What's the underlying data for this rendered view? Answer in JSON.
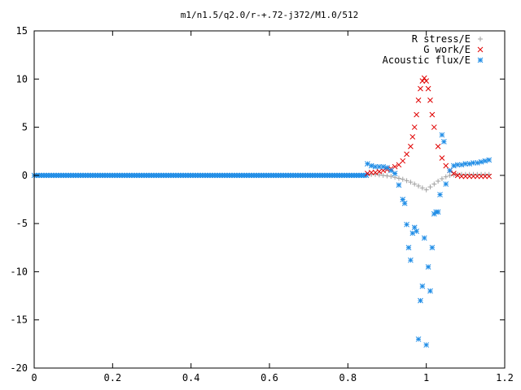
{
  "chart_data": {
    "type": "scatter",
    "title": "m1/n1.5/q2.0/r-+.72-j372/M1.0/512",
    "xlabel": "",
    "ylabel": "",
    "xlim": [
      0,
      1.2
    ],
    "ylim": [
      -20,
      15
    ],
    "x_ticks": [
      0,
      0.2,
      0.4,
      0.6,
      0.8,
      1,
      1.2
    ],
    "x_tick_labels": [
      "0",
      "0.2",
      "0.4",
      "0.6",
      "0.8",
      "1",
      "1.2"
    ],
    "y_ticks": [
      -20,
      -15,
      -10,
      -5,
      0,
      5,
      10,
      15
    ],
    "y_tick_labels": [
      "-20",
      "-15",
      "-10",
      "-5",
      "0",
      "5",
      "10",
      "15"
    ],
    "grid": false,
    "legend_position": "top-right",
    "series": [
      {
        "name": "R stress/E",
        "marker": "plus",
        "color": "#a0a0a0",
        "x": [
          0.86,
          0.87,
          0.88,
          0.89,
          0.9,
          0.91,
          0.92,
          0.93,
          0.94,
          0.95,
          0.96,
          0.97,
          0.98,
          0.99,
          1.0,
          1.01,
          1.02,
          1.03,
          1.04,
          1.05,
          1.06,
          1.07,
          1.08,
          1.09,
          1.1,
          1.11,
          1.12,
          1.13,
          1.14,
          1.15,
          1.16
        ],
        "y": [
          0.1,
          0.1,
          0.05,
          0,
          -0.05,
          -0.1,
          -0.2,
          -0.3,
          -0.4,
          -0.55,
          -0.7,
          -0.9,
          -1.1,
          -1.3,
          -1.5,
          -1.2,
          -0.9,
          -0.6,
          -0.35,
          -0.15,
          0,
          0.05,
          0.1,
          0.1,
          0.1,
          0.1,
          0.1,
          0.1,
          0.1,
          0.1,
          0.1
        ]
      },
      {
        "name": "G work/E",
        "marker": "cross",
        "color": "#e00000",
        "x": [
          0.85,
          0.86,
          0.87,
          0.88,
          0.89,
          0.9,
          0.91,
          0.92,
          0.93,
          0.94,
          0.95,
          0.96,
          0.965,
          0.97,
          0.975,
          0.98,
          0.985,
          0.99,
          0.995,
          1.0,
          1.005,
          1.01,
          1.015,
          1.02,
          1.03,
          1.04,
          1.05,
          1.06,
          1.07,
          1.08,
          1.09,
          1.1,
          1.11,
          1.12,
          1.13,
          1.14,
          1.15,
          1.16
        ],
        "y": [
          0.2,
          0.3,
          0.3,
          0.4,
          0.5,
          0.6,
          0.7,
          0.9,
          1.1,
          1.5,
          2.2,
          3.0,
          4.0,
          5.0,
          6.3,
          7.8,
          9.0,
          9.8,
          10.1,
          9.8,
          9.0,
          7.8,
          6.3,
          5.0,
          3.0,
          1.8,
          1.0,
          0.5,
          0.2,
          0,
          -0.1,
          -0.1,
          -0.1,
          -0.1,
          -0.1,
          -0.1,
          -0.1,
          -0.1
        ]
      },
      {
        "name": "Acoustic flux/E",
        "marker": "star",
        "color": "#1e8ce6",
        "x": [
          0.85,
          0.86,
          0.87,
          0.88,
          0.89,
          0.9,
          0.91,
          0.92,
          0.93,
          0.94,
          0.945,
          0.95,
          0.955,
          0.96,
          0.965,
          0.97,
          0.975,
          0.98,
          0.985,
          0.99,
          0.995,
          1.0,
          1.005,
          1.01,
          1.015,
          1.02,
          1.025,
          1.03,
          1.035,
          1.04,
          1.045,
          1.05,
          1.06,
          1.07,
          1.08,
          1.09,
          1.1,
          1.11,
          1.12,
          1.13,
          1.14,
          1.15,
          1.16
        ],
        "y": [
          1.2,
          1.0,
          0.9,
          0.9,
          0.9,
          0.8,
          0.5,
          0.2,
          -1.0,
          -2.5,
          -2.9,
          -5.1,
          -7.5,
          -8.8,
          -6.0,
          -5.4,
          -5.8,
          -17.0,
          -13.0,
          -11.5,
          -6.5,
          -17.6,
          -9.5,
          -12.0,
          -7.5,
          -4.0,
          -3.8,
          -3.8,
          -2.0,
          4.2,
          3.5,
          -0.9,
          0.5,
          1.0,
          1.1,
          1.1,
          1.2,
          1.2,
          1.3,
          1.3,
          1.4,
          1.5,
          1.6
        ]
      }
    ],
    "dense_baseline": {
      "series": "Acoustic flux/E",
      "x_start": 0,
      "x_end": 0.85,
      "y": 0
    }
  }
}
